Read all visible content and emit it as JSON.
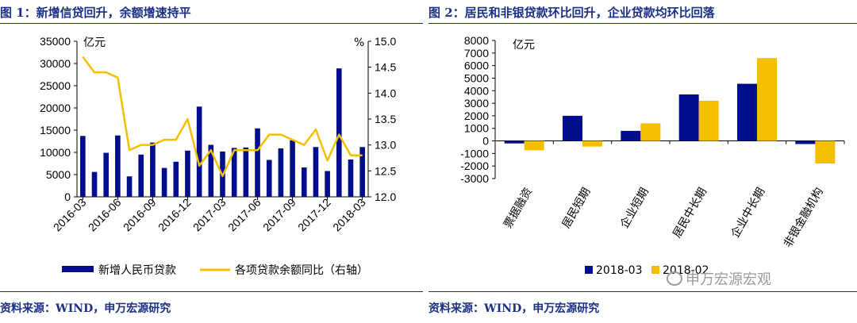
{
  "figures": [
    {
      "title": "图 1：新增信贷回升，余额增速持平",
      "source": "资料来源：WIND，申万宏源研究",
      "y_unit_left": "亿元",
      "y_unit_right": "%"
    },
    {
      "title": "图 2：居民和非银贷款环比回升，企业贷款均环比回落",
      "source": "资料来源：WIND，申万宏源研究",
      "y_unit": "亿元",
      "watermark": "申万宏源宏观"
    }
  ],
  "colors": {
    "navy": "#000d8c",
    "gold": "#f5bf00",
    "title_blue": "#1a2f86"
  },
  "chart_data": [
    {
      "type": "bar",
      "x_tick_labels": [
        "2016-03",
        "2016-06",
        "2016-09",
        "2016-12",
        "2017-03",
        "2017-06",
        "2017-09",
        "2017-12",
        "2018-03"
      ],
      "x": [
        "2016-03",
        "2016-04",
        "2016-05",
        "2016-06",
        "2016-07",
        "2016-08",
        "2016-09",
        "2016-10",
        "2016-11",
        "2016-12",
        "2017-01",
        "2017-02",
        "2017-03",
        "2017-04",
        "2017-05",
        "2017-06",
        "2017-07",
        "2017-08",
        "2017-09",
        "2017-10",
        "2017-11",
        "2017-12",
        "2018-01",
        "2018-02",
        "2018-03"
      ],
      "series": [
        {
          "name": "新增人民币贷款",
          "type": "bar",
          "axis": "left",
          "values": [
            13700,
            5600,
            9900,
            13800,
            4600,
            9500,
            12200,
            6500,
            7900,
            10400,
            20300,
            11700,
            10200,
            11000,
            11100,
            15400,
            8300,
            10900,
            12700,
            6600,
            11200,
            5800,
            28900,
            8400,
            11200
          ]
        },
        {
          "name": "各项贷款余额同比（右轴）",
          "type": "line",
          "axis": "right",
          "values": [
            14.7,
            14.4,
            14.4,
            14.3,
            12.9,
            13.0,
            13.0,
            13.1,
            13.1,
            13.5,
            12.6,
            12.9,
            12.4,
            12.9,
            12.9,
            12.9,
            13.2,
            13.2,
            13.1,
            13.0,
            13.3,
            12.7,
            13.2,
            12.8,
            12.8
          ]
        }
      ],
      "ylim_left": [
        0,
        35000
      ],
      "yticks_left": [
        0,
        5000,
        10000,
        15000,
        20000,
        25000,
        30000,
        35000
      ],
      "ylim_right": [
        12.0,
        15.0
      ],
      "yticks_right": [
        "12.0",
        "12.5",
        "13.0",
        "13.5",
        "14.0",
        "14.5",
        "15.0"
      ],
      "legend_position": "bottom"
    },
    {
      "type": "bar",
      "categories": [
        "票据融资",
        "居民短期",
        "企业短期",
        "居民中长期",
        "企业中长期",
        "非银金融机构"
      ],
      "series": [
        {
          "name": "2018-03",
          "values": [
            -200,
            2000,
            800,
            3700,
            4550,
            -250
          ]
        },
        {
          "name": "2018-02",
          "values": [
            -750,
            -450,
            1400,
            3200,
            6600,
            -1800
          ]
        }
      ],
      "ylim": [
        -3000,
        8000
      ],
      "yticks": [
        -3000,
        -2000,
        -1000,
        0,
        1000,
        2000,
        3000,
        4000,
        5000,
        6000,
        7000,
        8000
      ],
      "yticks_labels": [
        "-3000",
        "-2000",
        "-1000",
        "0",
        "1000",
        "2000",
        "3000",
        "4000",
        "5000",
        "6000",
        "7000",
        "8000"
      ],
      "legend_position": "bottom"
    }
  ]
}
